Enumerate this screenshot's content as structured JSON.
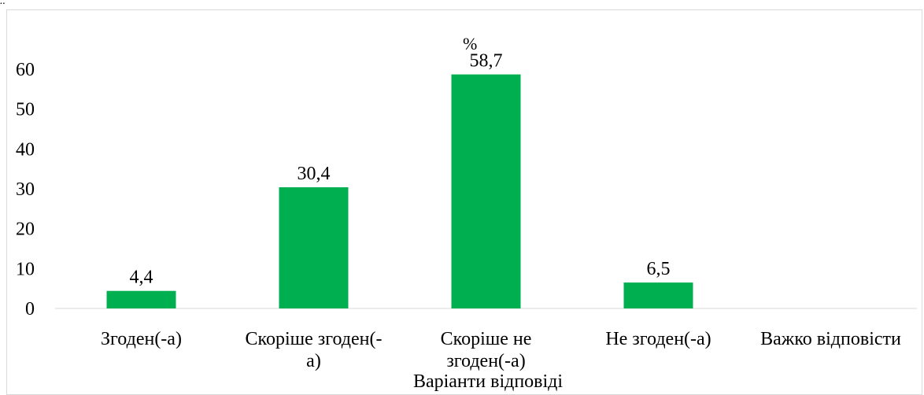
{
  "chart_data": {
    "type": "bar",
    "categories": [
      [
        "Згоден(-а)"
      ],
      [
        "Скоріше згоден(-",
        "а)"
      ],
      [
        "Скоріше не",
        "згоден(-а)"
      ],
      [
        "Не згоден(-а)"
      ],
      [
        "Важко відповісти"
      ]
    ],
    "values": [
      4.4,
      30.4,
      58.7,
      6.5,
      null
    ],
    "data_labels": [
      "4,4",
      "30,4",
      "58,7",
      "6,5",
      ""
    ],
    "ylim": [
      0,
      60
    ],
    "yticks": [
      0,
      10,
      20,
      30,
      40,
      50,
      60
    ],
    "ylabel": "%",
    "xlabel": "Варіанти відповіді",
    "grid": false,
    "legend": "none",
    "bar_color": "#00b050"
  }
}
